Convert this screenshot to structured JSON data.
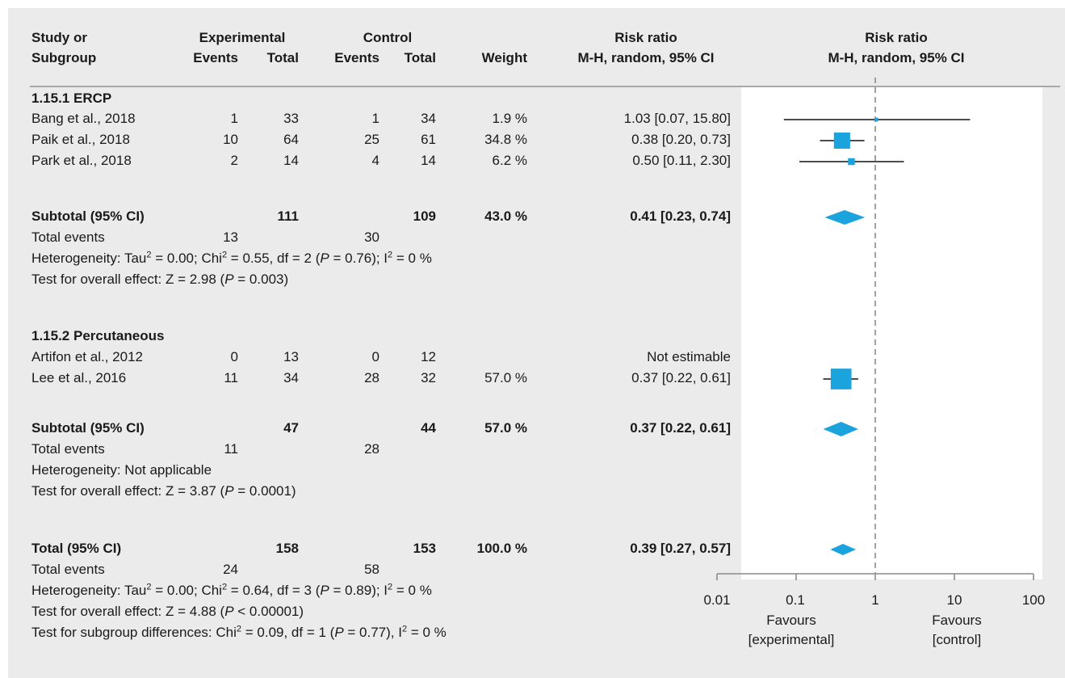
{
  "header": {
    "study_line1": "Study or",
    "study_line2": "Subgroup",
    "experimental": "Experimental",
    "control": "Control",
    "events": "Events",
    "total": "Total",
    "weight": "Weight",
    "rr_title": "Risk ratio",
    "rr_method": "M-H, random, 95% CI",
    "plot_title": "Risk ratio",
    "plot_method": "M-H, random, 95% CI"
  },
  "groups": [
    {
      "title": "1.15.1 ERCP",
      "studies": [
        {
          "name": "Bang et al., 2018",
          "e_events": "1",
          "e_total": "33",
          "c_events": "1",
          "c_total": "34",
          "weight": "1.9 %",
          "ci_text": "1.03 [0.07, 15.80]"
        },
        {
          "name": "Paik et al., 2018",
          "e_events": "10",
          "e_total": "64",
          "c_events": "25",
          "c_total": "61",
          "weight": "34.8 %",
          "ci_text": "0.38 [0.20, 0.73]"
        },
        {
          "name": "Park et al., 2018",
          "e_events": "2",
          "e_total": "14",
          "c_events": "4",
          "c_total": "14",
          "weight": "6.2 %",
          "ci_text": "0.50 [0.11, 2.30]"
        }
      ],
      "subtotal": {
        "label": "Subtotal (95% CI)",
        "e_total": "111",
        "c_total": "109",
        "weight": "43.0 %",
        "ci_text": "0.41 [0.23, 0.74]"
      },
      "events": {
        "label": "Total events",
        "e": "13",
        "c": "30"
      },
      "heterogeneity": "Heterogeneity: Tau² = 0.00; Chi² = 0.55, df = 2 (P = 0.76); I² = 0 %",
      "overall": "Test for overall effect: Z = 2.98 (P = 0.003)"
    },
    {
      "title": "1.15.2 Percutaneous",
      "studies": [
        {
          "name": "Artifon et al., 2012",
          "e_events": "0",
          "e_total": "13",
          "c_events": "0",
          "c_total": "12",
          "weight": "",
          "ci_text": "Not estimable"
        },
        {
          "name": "Lee et al., 2016",
          "e_events": "11",
          "e_total": "34",
          "c_events": "28",
          "c_total": "32",
          "weight": "57.0 %",
          "ci_text": "0.37 [0.22, 0.61]"
        }
      ],
      "subtotal": {
        "label": "Subtotal (95% CI)",
        "e_total": "47",
        "c_total": "44",
        "weight": "57.0 %",
        "ci_text": "0.37 [0.22, 0.61]"
      },
      "events": {
        "label": "Total events",
        "e": "11",
        "c": "28"
      },
      "heterogeneity": "Heterogeneity: Not applicable",
      "overall": "Test for overall effect: Z = 3.87 (P = 0.0001)"
    }
  ],
  "total": {
    "label": "Total (95% CI)",
    "e_total": "158",
    "c_total": "153",
    "weight": "100.0 %",
    "ci_text": "0.39 [0.27, 0.57]",
    "events": {
      "label": "Total events",
      "e": "24",
      "c": "58"
    },
    "heterogeneity": "Heterogeneity: Tau² = 0.00; Chi² = 0.64, df = 3 (P = 0.89); I² = 0 %",
    "overall": "Test for overall effect: Z = 4.88 (P < 0.00001)",
    "subgroup": "Test for subgroup differences: Chi² = 0.09, df = 1 (P = 0.77), I² = 0 %"
  },
  "axis": {
    "ticks": [
      "0.01",
      "0.1",
      "1",
      "10",
      "100"
    ],
    "favours_left_1": "Favours",
    "favours_left_2": "[experimental]",
    "favours_right_1": "Favours",
    "favours_right_2": "[control]"
  },
  "colors": {
    "marker": "#1aa3dc",
    "line": "#4d4d4d",
    "panel": "#ebebeb",
    "reference": "#8c8c8c"
  },
  "chart_data": {
    "type": "forest",
    "scale": "log",
    "xlim": [
      0.01,
      100
    ],
    "reference_line": 1,
    "grid": false,
    "studies": [
      {
        "name": "Bang et al., 2018",
        "rr": 1.03,
        "lower": 0.07,
        "upper": 15.8,
        "weight": 1.9
      },
      {
        "name": "Paik et al., 2018",
        "rr": 0.38,
        "lower": 0.2,
        "upper": 0.73,
        "weight": 34.8
      },
      {
        "name": "Park et al., 2018",
        "rr": 0.5,
        "lower": 0.11,
        "upper": 2.3,
        "weight": 6.2
      },
      {
        "name": "Lee et al., 2016",
        "rr": 0.37,
        "lower": 0.22,
        "upper": 0.61,
        "weight": 57.0
      }
    ],
    "diamonds": [
      {
        "name": "Subtotal 1.15.1 ERCP",
        "rr": 0.41,
        "lower": 0.23,
        "upper": 0.74
      },
      {
        "name": "Subtotal 1.15.2 Percutaneous",
        "rr": 0.37,
        "lower": 0.22,
        "upper": 0.61
      },
      {
        "name": "Total",
        "rr": 0.39,
        "lower": 0.27,
        "upper": 0.57
      }
    ]
  }
}
